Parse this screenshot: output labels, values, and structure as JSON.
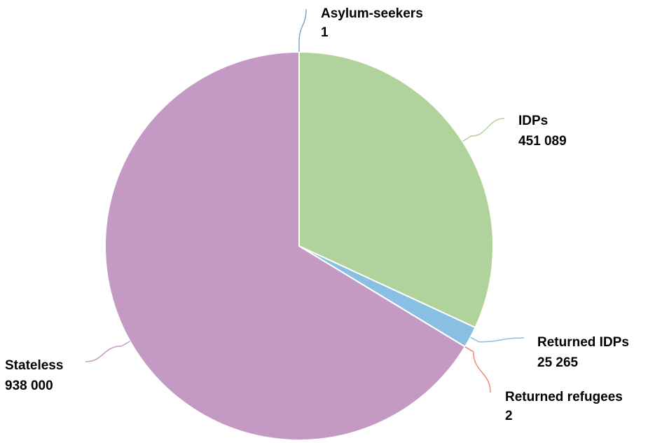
{
  "chart_data": {
    "type": "pie",
    "title": "",
    "slices": [
      {
        "label": "Asylum-seekers",
        "value": 1,
        "value_text": "1",
        "color": "#7aa7c7"
      },
      {
        "label": "IDPs",
        "value": 451089,
        "value_text": "451 089",
        "color": "#b0d29b"
      },
      {
        "label": "Returned IDPs",
        "value": 25265,
        "value_text": "25 265",
        "color": "#88bfe2"
      },
      {
        "label": "Returned refugees",
        "value": 2,
        "value_text": "2",
        "color": "#f08a78"
      },
      {
        "label": "Stateless",
        "value": 938000,
        "value_text": "938 000",
        "color": "#c49ac4"
      }
    ]
  }
}
